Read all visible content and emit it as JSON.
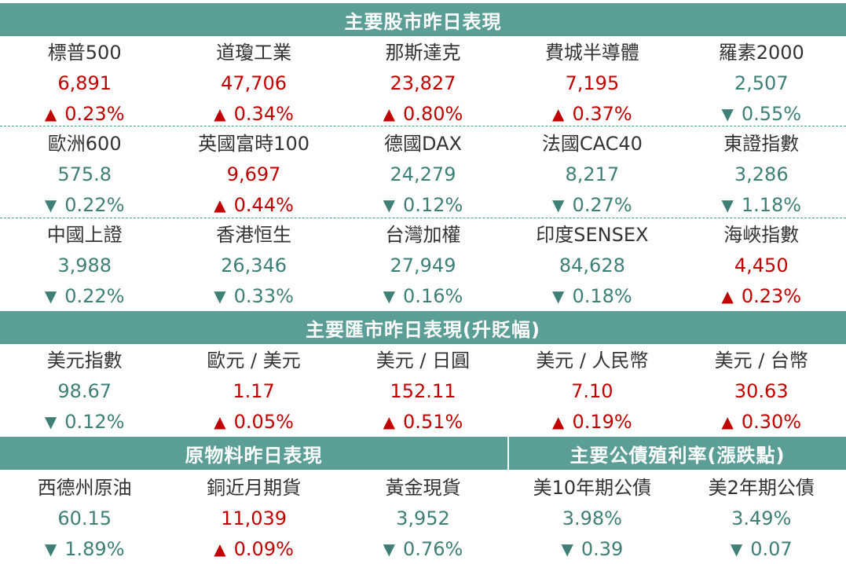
{
  "sections": {
    "stocks_title": "主要股市昨日表現",
    "fx_title": "主要匯市昨日表現(升貶幅)",
    "commod_title": "原物料昨日表現",
    "bond_title": "主要公債殖利率(漲跌點)"
  },
  "arrows": {
    "up": "▲",
    "down": "▼"
  },
  "colors": {
    "header": "#5a9e95",
    "up": "#c00000",
    "down": "#3e7f76",
    "dashed": "#4e9b92"
  },
  "stocks": [
    {
      "name": "標普500",
      "value": "6,891",
      "change": "0.23%",
      "dir": "up"
    },
    {
      "name": "道瓊工業",
      "value": "47,706",
      "change": "0.34%",
      "dir": "up"
    },
    {
      "name": "那斯達克",
      "value": "23,827",
      "change": "0.80%",
      "dir": "up"
    },
    {
      "name": "費城半導體",
      "value": "7,195",
      "change": "0.37%",
      "dir": "up"
    },
    {
      "name": "羅素2000",
      "value": "2,507",
      "change": "0.55%",
      "dir": "down"
    },
    {
      "name": "歐洲600",
      "value": "575.8",
      "change": "0.22%",
      "dir": "down"
    },
    {
      "name": "英國富時100",
      "value": "9,697",
      "change": "0.44%",
      "dir": "up"
    },
    {
      "name": "德國DAX",
      "value": "24,279",
      "change": "0.12%",
      "dir": "down"
    },
    {
      "name": "法國CAC40",
      "value": "8,217",
      "change": "0.27%",
      "dir": "down"
    },
    {
      "name": "東證指數",
      "value": "3,286",
      "change": "1.18%",
      "dir": "down"
    },
    {
      "name": "中國上證",
      "value": "3,988",
      "change": "0.22%",
      "dir": "down"
    },
    {
      "name": "香港恒生",
      "value": "26,346",
      "change": "0.33%",
      "dir": "down"
    },
    {
      "name": "台灣加權",
      "value": "27,949",
      "change": "0.16%",
      "dir": "down"
    },
    {
      "name": "印度SENSEX",
      "value": "84,628",
      "change": "0.18%",
      "dir": "down"
    },
    {
      "name": "海峽指數",
      "value": "4,450",
      "change": "0.23%",
      "dir": "up"
    }
  ],
  "fx": [
    {
      "name": "美元指數",
      "value": "98.67",
      "change": "0.12%",
      "dir": "down"
    },
    {
      "name": "歐元 / 美元",
      "value": "1.17",
      "change": "0.05%",
      "dir": "up"
    },
    {
      "name": "美元 / 日圓",
      "value": "152.11",
      "change": "0.51%",
      "dir": "up"
    },
    {
      "name": "美元 / 人民幣",
      "value": "7.10",
      "change": "0.19%",
      "dir": "up"
    },
    {
      "name": "美元 / 台幣",
      "value": "30.63",
      "change": "0.30%",
      "dir": "up"
    }
  ],
  "bottom": [
    {
      "name": "西德州原油",
      "value": "60.15",
      "change": "1.89%",
      "dir": "down"
    },
    {
      "name": "銅近月期貨",
      "value": "11,039",
      "change": "0.09%",
      "dir": "up"
    },
    {
      "name": "黃金現貨",
      "value": "3,952",
      "change": "0.76%",
      "dir": "down"
    },
    {
      "name": "美10年期公債",
      "value": "3.98%",
      "change": "0.39",
      "dir": "down"
    },
    {
      "name": "美2年期公債",
      "value": "3.49%",
      "change": "0.07",
      "dir": "down"
    }
  ]
}
